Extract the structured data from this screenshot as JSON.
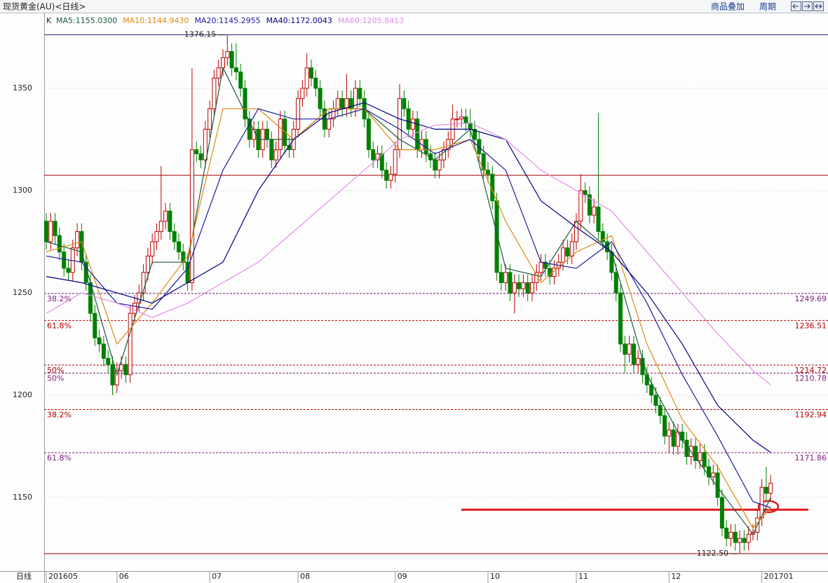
{
  "header": {
    "title": "现货黄金(AU)<日线>",
    "menu": [
      "商品叠加",
      "周期"
    ]
  },
  "chart_data": {
    "type": "candlestick",
    "legend_prefix": "K",
    "candle_colors": {
      "up": "#c00000",
      "down": "#008000"
    },
    "ylim": [
      1114,
      1387
    ],
    "yticks": [
      1150,
      1200,
      1250,
      1300,
      1350
    ],
    "grid": true,
    "xlim": [
      0,
      164
    ],
    "x_axis_label": "日线",
    "xticks": [
      {
        "value": 0,
        "label": "201605"
      },
      {
        "value": 16,
        "label": "06"
      },
      {
        "value": 37,
        "label": "07"
      },
      {
        "value": 57,
        "label": "08"
      },
      {
        "value": 79,
        "label": "09"
      },
      {
        "value": 100,
        "label": "10"
      },
      {
        "value": 120,
        "label": "11"
      },
      {
        "value": 141,
        "label": "12"
      },
      {
        "value": 162,
        "label": "201701"
      }
    ],
    "ohlc": [
      [
        1285,
        1289,
        1271,
        1275
      ],
      [
        1275,
        1289,
        1271,
        1285
      ],
      [
        1285,
        1289,
        1274,
        1278
      ],
      [
        1278,
        1282,
        1266,
        1270
      ],
      [
        1270,
        1274,
        1258,
        1262
      ],
      [
        1262,
        1266,
        1256,
        1260
      ],
      [
        1260,
        1276,
        1256,
        1272
      ],
      [
        1272,
        1284,
        1268,
        1280
      ],
      [
        1280,
        1284,
        1261,
        1265
      ],
      [
        1265,
        1269,
        1251,
        1255
      ],
      [
        1255,
        1259,
        1236,
        1240
      ],
      [
        1240,
        1244,
        1224,
        1228
      ],
      [
        1228,
        1232,
        1221,
        1225
      ],
      [
        1225,
        1229,
        1214,
        1218
      ],
      [
        1218,
        1222,
        1211,
        1215
      ],
      [
        1215,
        1219,
        1200,
        1205
      ],
      [
        1205,
        1216,
        1201,
        1212
      ],
      [
        1212,
        1219,
        1208,
        1215
      ],
      [
        1215,
        1219,
        1206,
        1210
      ],
      [
        1210,
        1244,
        1206,
        1240
      ],
      [
        1240,
        1249,
        1236,
        1245
      ],
      [
        1245,
        1254,
        1241,
        1250
      ],
      [
        1250,
        1264,
        1246,
        1260
      ],
      [
        1260,
        1272,
        1256,
        1268
      ],
      [
        1268,
        1279,
        1264,
        1275
      ],
      [
        1275,
        1284,
        1271,
        1280
      ],
      [
        1280,
        1312,
        1276,
        1285
      ],
      [
        1285,
        1294,
        1281,
        1290
      ],
      [
        1290,
        1294,
        1276,
        1280
      ],
      [
        1280,
        1284,
        1271,
        1275
      ],
      [
        1275,
        1279,
        1266,
        1270
      ],
      [
        1270,
        1274,
        1261,
        1265
      ],
      [
        1265,
        1269,
        1251,
        1255
      ],
      [
        1255,
        1360,
        1251,
        1320
      ],
      [
        1320,
        1324,
        1314,
        1318
      ],
      [
        1318,
        1322,
        1311,
        1315
      ],
      [
        1315,
        1334,
        1311,
        1330
      ],
      [
        1330,
        1344,
        1326,
        1340
      ],
      [
        1340,
        1359,
        1336,
        1355
      ],
      [
        1355,
        1364,
        1351,
        1360
      ],
      [
        1360,
        1369,
        1356,
        1365
      ],
      [
        1365,
        1376.15,
        1361,
        1368
      ],
      [
        1368,
        1372,
        1356,
        1360
      ],
      [
        1360,
        1372,
        1354,
        1358
      ],
      [
        1358,
        1362,
        1346,
        1350
      ],
      [
        1350,
        1354,
        1331,
        1335
      ],
      [
        1335,
        1339,
        1321,
        1325
      ],
      [
        1325,
        1334,
        1321,
        1330
      ],
      [
        1330,
        1334,
        1316,
        1320
      ],
      [
        1320,
        1334,
        1316,
        1330
      ],
      [
        1330,
        1334,
        1321,
        1325
      ],
      [
        1325,
        1329,
        1311,
        1315
      ],
      [
        1315,
        1324,
        1311,
        1320
      ],
      [
        1320,
        1339,
        1316,
        1335
      ],
      [
        1335,
        1339,
        1318,
        1322
      ],
      [
        1322,
        1326,
        1316,
        1320
      ],
      [
        1320,
        1334,
        1316,
        1330
      ],
      [
        1330,
        1349,
        1326,
        1345
      ],
      [
        1345,
        1354,
        1341,
        1350
      ],
      [
        1350,
        1367,
        1346,
        1360
      ],
      [
        1360,
        1364,
        1351,
        1355
      ],
      [
        1355,
        1359,
        1346,
        1350
      ],
      [
        1350,
        1354,
        1336,
        1340
      ],
      [
        1340,
        1344,
        1326,
        1330
      ],
      [
        1330,
        1339,
        1326,
        1335
      ],
      [
        1335,
        1344,
        1331,
        1340
      ],
      [
        1340,
        1349,
        1336,
        1345
      ],
      [
        1345,
        1349,
        1336,
        1340
      ],
      [
        1340,
        1357,
        1336,
        1345
      ],
      [
        1345,
        1349,
        1336,
        1340
      ],
      [
        1340,
        1354,
        1336,
        1350
      ],
      [
        1350,
        1354,
        1341,
        1345
      ],
      [
        1345,
        1349,
        1331,
        1335
      ],
      [
        1335,
        1339,
        1316,
        1320
      ],
      [
        1320,
        1324,
        1311,
        1315
      ],
      [
        1315,
        1322,
        1311,
        1318
      ],
      [
        1318,
        1322,
        1306,
        1310
      ],
      [
        1310,
        1314,
        1301,
        1305
      ],
      [
        1305,
        1312,
        1301,
        1308
      ],
      [
        1308,
        1324,
        1304,
        1320
      ],
      [
        1320,
        1352,
        1316,
        1345
      ],
      [
        1345,
        1349,
        1336,
        1340
      ],
      [
        1340,
        1344,
        1326,
        1330
      ],
      [
        1330,
        1339,
        1326,
        1335
      ],
      [
        1335,
        1339,
        1316,
        1320
      ],
      [
        1320,
        1329,
        1316,
        1325
      ],
      [
        1325,
        1329,
        1314,
        1318
      ],
      [
        1318,
        1322,
        1311,
        1315
      ],
      [
        1315,
        1319,
        1306,
        1310
      ],
      [
        1310,
        1319,
        1306,
        1315
      ],
      [
        1315,
        1324,
        1311,
        1320
      ],
      [
        1320,
        1329,
        1316,
        1325
      ],
      [
        1325,
        1342,
        1321,
        1335
      ],
      [
        1335,
        1339,
        1331,
        1335
      ],
      [
        1335,
        1340,
        1331,
        1336
      ],
      [
        1336,
        1340,
        1329,
        1333
      ],
      [
        1333,
        1340,
        1326,
        1330
      ],
      [
        1330,
        1334,
        1321,
        1325
      ],
      [
        1325,
        1329,
        1314,
        1318
      ],
      [
        1318,
        1322,
        1306,
        1310
      ],
      [
        1310,
        1314,
        1304,
        1308
      ],
      [
        1308,
        1312,
        1291,
        1295
      ],
      [
        1295,
        1299,
        1256,
        1260
      ],
      [
        1260,
        1264,
        1251,
        1255
      ],
      [
        1255,
        1264,
        1251,
        1260
      ],
      [
        1260,
        1264,
        1246,
        1250
      ],
      [
        1250,
        1259,
        1240,
        1255
      ],
      [
        1255,
        1259,
        1248,
        1252
      ],
      [
        1252,
        1259,
        1248,
        1255
      ],
      [
        1255,
        1259,
        1246,
        1250
      ],
      [
        1250,
        1259,
        1246,
        1255
      ],
      [
        1255,
        1264,
        1251,
        1260
      ],
      [
        1260,
        1269,
        1256,
        1265
      ],
      [
        1265,
        1269,
        1258,
        1262
      ],
      [
        1262,
        1266,
        1254,
        1258
      ],
      [
        1258,
        1266,
        1254,
        1262
      ],
      [
        1262,
        1269,
        1258,
        1265
      ],
      [
        1265,
        1276,
        1261,
        1272
      ],
      [
        1272,
        1276,
        1264,
        1268
      ],
      [
        1268,
        1279,
        1264,
        1275
      ],
      [
        1275,
        1289,
        1271,
        1285
      ],
      [
        1285,
        1308,
        1281,
        1300
      ],
      [
        1300,
        1304,
        1294,
        1298
      ],
      [
        1298,
        1302,
        1284,
        1288
      ],
      [
        1288,
        1296,
        1284,
        1292
      ],
      [
        1292,
        1338,
        1276,
        1280
      ],
      [
        1280,
        1284,
        1271,
        1275
      ],
      [
        1275,
        1279,
        1266,
        1270
      ],
      [
        1270,
        1274,
        1256,
        1260
      ],
      [
        1260,
        1264,
        1246,
        1250
      ],
      [
        1250,
        1254,
        1221,
        1225
      ],
      [
        1225,
        1229,
        1211,
        1220
      ],
      [
        1220,
        1229,
        1216,
        1225
      ],
      [
        1225,
        1229,
        1211,
        1215
      ],
      [
        1215,
        1222,
        1211,
        1218
      ],
      [
        1218,
        1222,
        1206,
        1210
      ],
      [
        1210,
        1214,
        1201,
        1205
      ],
      [
        1205,
        1209,
        1196,
        1200
      ],
      [
        1200,
        1204,
        1191,
        1195
      ],
      [
        1195,
        1199,
        1186,
        1190
      ],
      [
        1190,
        1194,
        1176,
        1180
      ],
      [
        1180,
        1187,
        1172,
        1183
      ],
      [
        1183,
        1187,
        1171,
        1175
      ],
      [
        1175,
        1186,
        1171,
        1182
      ],
      [
        1182,
        1186,
        1174,
        1178
      ],
      [
        1178,
        1182,
        1166,
        1170
      ],
      [
        1170,
        1179,
        1166,
        1175
      ],
      [
        1175,
        1179,
        1164,
        1168
      ],
      [
        1168,
        1176,
        1164,
        1172
      ],
      [
        1172,
        1176,
        1161,
        1165
      ],
      [
        1165,
        1169,
        1156,
        1160
      ],
      [
        1160,
        1166,
        1156,
        1162
      ],
      [
        1162,
        1166,
        1146,
        1150
      ],
      [
        1150,
        1154,
        1131,
        1135
      ],
      [
        1135,
        1139,
        1126,
        1130
      ],
      [
        1130,
        1137,
        1126,
        1133
      ],
      [
        1133,
        1137,
        1124,
        1128
      ],
      [
        1128,
        1134,
        1122.5,
        1130
      ],
      [
        1130,
        1134,
        1124,
        1128
      ],
      [
        1128,
        1136,
        1124,
        1132
      ],
      [
        1132,
        1137,
        1129,
        1133
      ],
      [
        1133,
        1144,
        1129,
        1140
      ],
      [
        1140,
        1159,
        1136,
        1155
      ],
      [
        1155,
        1165,
        1148,
        1152
      ],
      [
        1152,
        1161,
        1148,
        1157
      ]
    ],
    "series": [
      {
        "name": "MA5:1155.0300",
        "color": "#1a5a3a",
        "x": [
          0,
          8,
          16,
          24,
          32,
          40,
          48,
          56,
          64,
          72,
          80,
          88,
          96,
          104,
          112,
          120,
          128,
          136,
          144,
          152,
          160,
          164
        ],
        "values": [
          1275,
          1270,
          1210,
          1265,
          1265,
          1360,
          1325,
          1325,
          1340,
          1340,
          1325,
          1315,
          1330,
          1262,
          1258,
          1285,
          1270,
          1210,
          1178,
          1155,
          1132,
          1150
        ]
      },
      {
        "name": "MA10:1144.9430",
        "color": "#e08a10",
        "x": [
          0,
          8,
          16,
          24,
          32,
          40,
          48,
          56,
          64,
          72,
          80,
          88,
          96,
          104,
          112,
          120,
          128,
          136,
          144,
          152,
          160,
          164
        ],
        "values": [
          1270,
          1275,
          1225,
          1245,
          1268,
          1340,
          1340,
          1325,
          1340,
          1340,
          1320,
          1320,
          1325,
          1285,
          1255,
          1270,
          1278,
          1225,
          1188,
          1165,
          1135,
          1145
        ]
      },
      {
        "name": "MA20:1145.2955",
        "color": "#1c1c9c",
        "x": [
          0,
          8,
          16,
          24,
          32,
          40,
          48,
          56,
          64,
          72,
          80,
          88,
          96,
          104,
          112,
          120,
          128,
          136,
          144,
          152,
          160,
          164
        ],
        "values": [
          1268,
          1265,
          1245,
          1242,
          1262,
          1310,
          1340,
          1335,
          1335,
          1340,
          1330,
          1318,
          1325,
          1310,
          1265,
          1262,
          1275,
          1245,
          1210,
          1180,
          1148,
          1145
        ]
      },
      {
        "name": "MA40:1172.0043",
        "color": "#000080",
        "x": [
          0,
          8,
          16,
          24,
          32,
          40,
          48,
          56,
          64,
          72,
          80,
          88,
          96,
          104,
          112,
          120,
          128,
          136,
          144,
          152,
          160,
          164
        ],
        "values": [
          1258,
          1255,
          1250,
          1245,
          1255,
          1265,
          1300,
          1325,
          1338,
          1343,
          1335,
          1330,
          1330,
          1325,
          1295,
          1282,
          1270,
          1250,
          1225,
          1195,
          1178,
          1172
        ]
      },
      {
        "name": "MA60:1205.8413",
        "color": "#e08ee8",
        "x": [
          0,
          8,
          16,
          24,
          32,
          40,
          48,
          56,
          64,
          72,
          80,
          88,
          96,
          104,
          112,
          120,
          128,
          136,
          144,
          152,
          160,
          164
        ],
        "values": [
          1240,
          1250,
          1245,
          1238,
          1245,
          1255,
          1265,
          1280,
          1295,
          1310,
          1325,
          1332,
          1333,
          1325,
          1310,
          1300,
          1290,
          1270,
          1250,
          1230,
          1212,
          1205
        ]
      }
    ],
    "hlines": [
      {
        "value": 1376.15,
        "color": "#3a1a6a"
      },
      {
        "value": 1307.5,
        "color": "#a00000"
      },
      {
        "value": 1122.5,
        "color": "#a00000"
      }
    ],
    "extremes": [
      {
        "value": 1376.15,
        "label": "1376.15",
        "index": 41
      },
      {
        "value": 1122.5,
        "label": "1122.50",
        "index": 157
      }
    ],
    "levels": [
      {
        "value": 1249.69,
        "label": "1249.69",
        "ratio": "38.2%",
        "color": "#7a1f7a"
      },
      {
        "value": 1236.51,
        "label": "1236.51",
        "ratio": "61.8%",
        "color": "#b00000"
      },
      {
        "value": 1214.72,
        "label": "1214.72",
        "ratio": "50%",
        "color": "#b00000"
      },
      {
        "value": 1210.78,
        "label": "1210.78",
        "ratio": "50%",
        "color": "#7a1f7a"
      },
      {
        "value": 1192.94,
        "label": "1192.94",
        "ratio": "38.2%",
        "color": "#b00000"
      },
      {
        "value": 1171.86,
        "label": "1171.86",
        "ratio": "61.8%",
        "color": "#7a1f7a"
      }
    ],
    "support_line": {
      "value": 1144,
      "color": "#e02020"
    }
  }
}
